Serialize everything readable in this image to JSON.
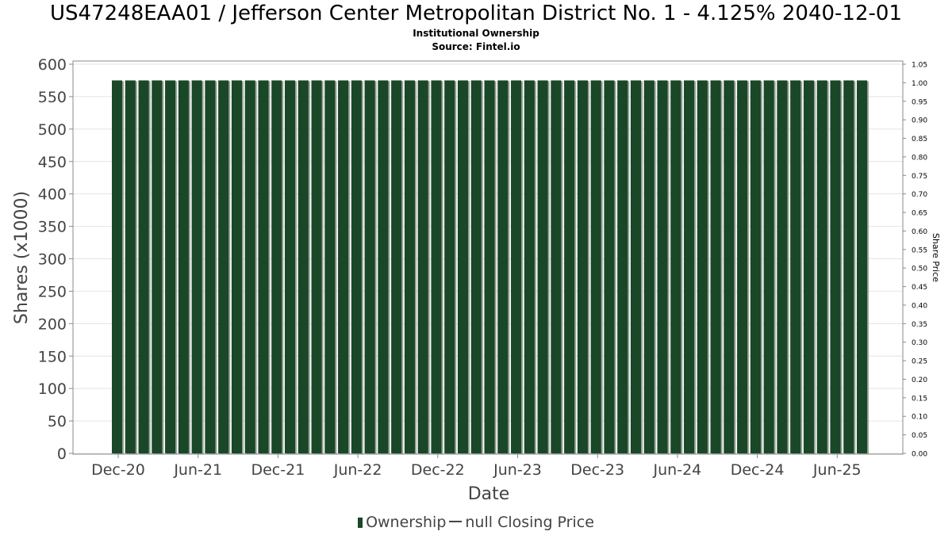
{
  "title": "US47248EAA01 / Jefferson Center Metropolitan District No. 1 - 4.125% 2040-12-01",
  "subtitle": "Institutional Ownership",
  "source": "Source: Fintel.io",
  "legend": {
    "ownership_label": "Ownership",
    "price_label": "null Closing Price"
  },
  "colors": {
    "bar": "#1a4727",
    "bar_shadow": "#9aa39a",
    "grid": "#e4e4e4",
    "axis_text": "#444444"
  },
  "chart_data": {
    "type": "bar",
    "xlabel": "Date",
    "ylabel": "Shares (x1000)",
    "y2label": "Share Price",
    "ylim": [
      0,
      600
    ],
    "y2lim": [
      0,
      1.05
    ],
    "yticks": [
      0,
      50,
      100,
      150,
      200,
      250,
      300,
      350,
      400,
      450,
      500,
      550,
      600
    ],
    "y2ticks": [
      "0.00",
      "0.05",
      "0.10",
      "0.15",
      "0.20",
      "0.25",
      "0.30",
      "0.35",
      "0.40",
      "0.45",
      "0.50",
      "0.55",
      "0.60",
      "0.65",
      "0.70",
      "0.75",
      "0.80",
      "0.85",
      "0.90",
      "0.95",
      "1.00",
      "1.05"
    ],
    "xticks": [
      "Dec-20",
      "Jun-21",
      "Dec-21",
      "Jun-22",
      "Dec-22",
      "Jun-23",
      "Dec-23",
      "Jun-24",
      "Dec-24",
      "Jun-25"
    ],
    "grid": true,
    "legend_position": "bottom",
    "series": [
      {
        "name": "Ownership",
        "values": [
          575,
          575,
          575,
          575,
          575,
          575,
          575,
          575,
          575,
          575,
          575,
          575,
          575,
          575,
          575,
          575,
          575,
          575,
          575,
          575,
          575,
          575,
          575,
          575,
          575,
          575,
          575,
          575,
          575,
          575,
          575,
          575,
          575,
          575,
          575,
          575,
          575,
          575,
          575,
          575,
          575,
          575,
          575,
          575,
          575,
          575,
          575,
          575,
          575,
          575,
          575,
          575,
          575,
          575,
          575,
          575,
          575
        ]
      }
    ]
  }
}
